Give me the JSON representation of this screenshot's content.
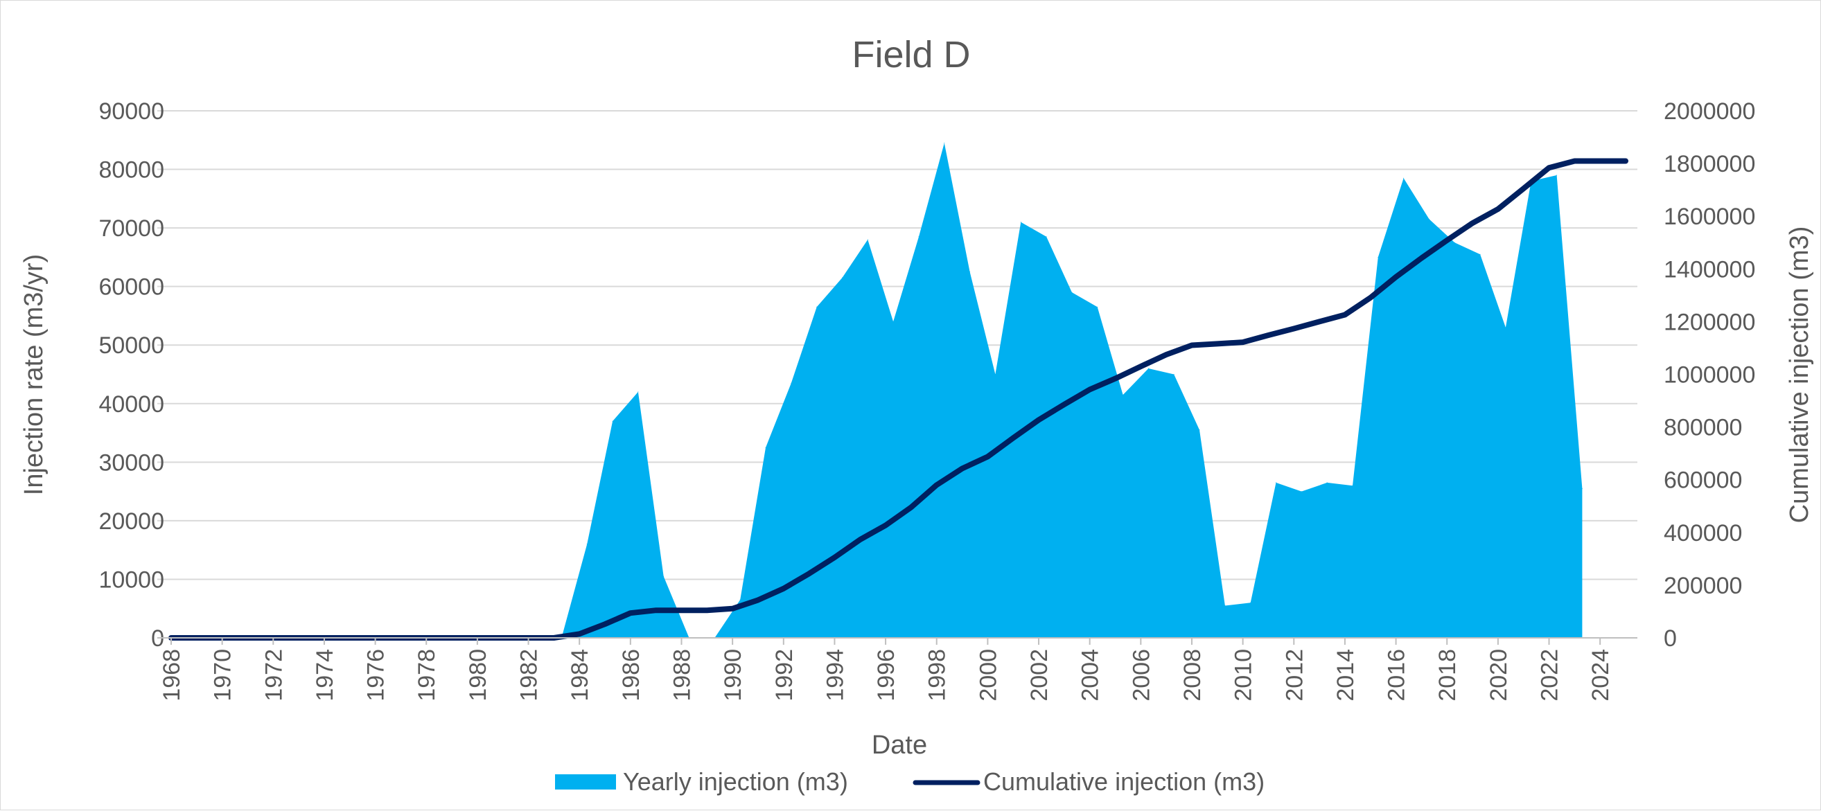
{
  "chart_data": {
    "type": "area",
    "title": "Field D",
    "xlabel": "Date",
    "ylabel": "Injection rate (m3/yr)",
    "y2label": "Cumulative injection (m3)",
    "xlim": [
      1968,
      2025
    ],
    "ylim": [
      0,
      90000
    ],
    "y2lim": [
      0,
      2000000
    ],
    "yticks": [
      "0",
      "10000",
      "20000",
      "30000",
      "40000",
      "50000",
      "60000",
      "70000",
      "80000",
      "90000"
    ],
    "y2ticks": [
      "0",
      "200000",
      "400000",
      "600000",
      "800000",
      "1000000",
      "1200000",
      "1400000",
      "1600000",
      "1800000",
      "2000000"
    ],
    "xticks": [
      "1968",
      "1970",
      "1972",
      "1974",
      "1976",
      "1978",
      "1980",
      "1982",
      "1984",
      "1986",
      "1988",
      "1990",
      "1992",
      "1994",
      "1996",
      "1998",
      "2000",
      "2002",
      "2004",
      "2006",
      "2008",
      "2010",
      "2012",
      "2014",
      "2016",
      "2018",
      "2020",
      "2022",
      "2024"
    ],
    "grid": true,
    "legend_position": "bottom",
    "colors": {
      "yearly": "#00b0f0",
      "cumulative": "#002060"
    },
    "series": [
      {
        "name": "Yearly injection (m3)",
        "type": "area",
        "axis": "left",
        "x": [
          1983.3,
          1984.3,
          1985.3,
          1986.3,
          1987.3,
          1988.3,
          1989.3,
          1990.3,
          1991.3,
          1992.3,
          1993.3,
          1994.3,
          1995.3,
          1996.3,
          1997.3,
          1998.3,
          1999.3,
          2000.3,
          2001.3,
          2002.3,
          2003.3,
          2004.3,
          2005.3,
          2006.3,
          2007.3,
          2008.3,
          2009.3,
          2010.3,
          2011.3,
          2012.3,
          2013.3,
          2014.3,
          2015.3,
          2016.3,
          2017.3,
          2018.3,
          2019.3,
          2020.3,
          2021.3,
          2022.3,
          2023.3
        ],
        "values": [
          0,
          16000,
          37000,
          42000,
          10500,
          0,
          0,
          6500,
          32500,
          43500,
          56500,
          61500,
          68000,
          54000,
          68500,
          84500,
          62500,
          45000,
          71000,
          68500,
          59000,
          56500,
          41500,
          46000,
          45000,
          35500,
          5500,
          6000,
          26500,
          25000,
          26500,
          26000,
          65000,
          78500,
          71500,
          67500,
          65500,
          53000,
          78000,
          79000,
          25500
        ]
      },
      {
        "name": "Cumulative injection (m3)",
        "type": "line",
        "axis": "right",
        "x": [
          1968,
          1969,
          1970,
          1971,
          1972,
          1973,
          1974,
          1975,
          1976,
          1977,
          1978,
          1979,
          1980,
          1981,
          1982,
          1983,
          1984,
          1985,
          1986,
          1987,
          1988,
          1989,
          1990,
          1991,
          1992,
          1993,
          1994,
          1995,
          1996,
          1997,
          1998,
          1999,
          2000,
          2001,
          2002,
          2003,
          2004,
          2005,
          2006,
          2007,
          2008,
          2009,
          2010,
          2011,
          2012,
          2013,
          2014,
          2015,
          2016,
          2017,
          2018,
          2019,
          2020,
          2021,
          2022,
          2023,
          2024,
          2025
        ],
        "values": [
          0,
          0,
          0,
          0,
          0,
          0,
          0,
          0,
          0,
          0,
          0,
          0,
          0,
          0,
          0,
          0,
          15000,
          52000,
          94000,
          104500,
          104500,
          104500,
          111000,
          143500,
          187000,
          243500,
          305000,
          373000,
          427000,
          495500,
          580000,
          642500,
          687500,
          758500,
          827000,
          886000,
          942500,
          984000,
          1030000,
          1075000,
          1110500,
          1116000,
          1122000,
          1148500,
          1173500,
          1200000,
          1226000,
          1291000,
          1369500,
          1441000,
          1508500,
          1574000,
          1627000,
          1705000,
          1784000,
          1809500,
          1809500,
          1809500
        ]
      }
    ]
  }
}
